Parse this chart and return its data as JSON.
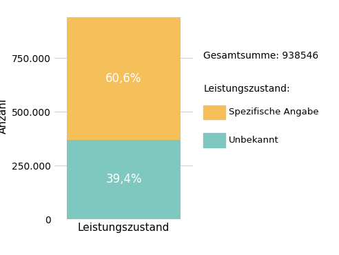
{
  "total": 938546,
  "pct_spezifisch": 60.6,
  "pct_unbekannt": 39.4,
  "val_spezifisch": 568818,
  "val_unbekannt": 369728,
  "color_spezifisch": "#F5C05A",
  "color_unbekannt": "#7EC8C0",
  "xlabel": "Leistungszustand",
  "ylabel": "Anzahl",
  "title_annotation": "Gesamtsumme: 938546",
  "legend_title": "Leistungszustand:",
  "legend_labels": [
    "Spezifische Angabe",
    "Unbekannt"
  ],
  "label_spezifisch": "60,6%",
  "label_unbekannt": "39,4%",
  "ylim": [
    0,
    960000
  ],
  "yticks": [
    0,
    250000,
    500000,
    750000
  ],
  "background_color": "#ffffff",
  "grid_color": "#d3d3d3",
  "label_fontsize": 12,
  "tick_fontsize": 10,
  "axis_label_fontsize": 11
}
